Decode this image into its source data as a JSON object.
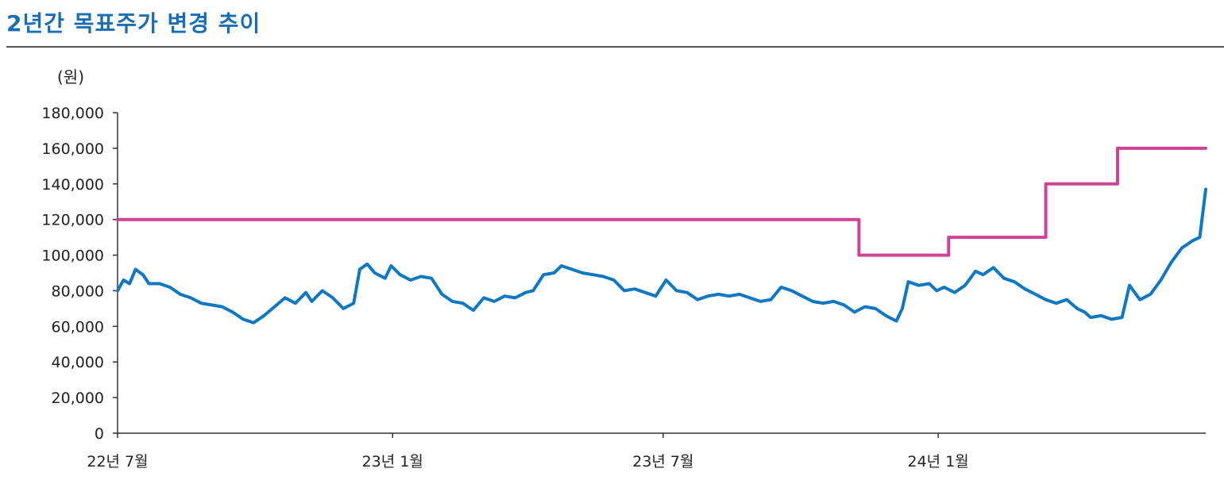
{
  "header": {
    "title": "2년간 목표주가 변경 추이"
  },
  "chart_data": {
    "type": "line",
    "title": "2년간 목표주가 변경 추이",
    "ylabel": "(원)",
    "xlabel": "",
    "ylim": [
      0,
      180000
    ],
    "xlim": [
      "2022-07-01",
      "2024-06-28"
    ],
    "y_ticks": [
      0,
      20000,
      40000,
      60000,
      80000,
      100000,
      120000,
      140000,
      160000,
      180000
    ],
    "y_tick_labels": [
      "0",
      "20,000",
      "40,000",
      "60,000",
      "80,000",
      "100,000",
      "120,000",
      "140,000",
      "160,000",
      "180,000"
    ],
    "x_ticks": [
      {
        "date": "2022-07-01",
        "label": "22년 7월"
      },
      {
        "date": "2023-01-01",
        "label": "23년 1월"
      },
      {
        "date": "2023-07-01",
        "label": "23년 7월"
      },
      {
        "date": "2024-01-01",
        "label": "24년 1월"
      }
    ],
    "grid": false,
    "legend": "none",
    "series": [
      {
        "color": "#0e78c2",
        "points": [
          [
            "2022-07-01",
            80000
          ],
          [
            "2022-07-05",
            86000
          ],
          [
            "2022-07-09",
            84000
          ],
          [
            "2022-07-13",
            92000
          ],
          [
            "2022-07-18",
            89000
          ],
          [
            "2022-07-22",
            84000
          ],
          [
            "2022-07-29",
            84000
          ],
          [
            "2022-08-05",
            82000
          ],
          [
            "2022-08-12",
            78000
          ],
          [
            "2022-08-19",
            76000
          ],
          [
            "2022-08-26",
            73000
          ],
          [
            "2022-09-02",
            72000
          ],
          [
            "2022-09-09",
            71000
          ],
          [
            "2022-09-16",
            68000
          ],
          [
            "2022-09-23",
            64000
          ],
          [
            "2022-09-30",
            62000
          ],
          [
            "2022-10-07",
            66000
          ],
          [
            "2022-10-14",
            71000
          ],
          [
            "2022-10-21",
            76000
          ],
          [
            "2022-10-28",
            73000
          ],
          [
            "2022-11-04",
            79000
          ],
          [
            "2022-11-08",
            74000
          ],
          [
            "2022-11-15",
            80000
          ],
          [
            "2022-11-22",
            76000
          ],
          [
            "2022-11-29",
            70000
          ],
          [
            "2022-12-06",
            73000
          ],
          [
            "2022-12-10",
            92000
          ],
          [
            "2022-12-15",
            95000
          ],
          [
            "2022-12-20",
            90000
          ],
          [
            "2022-12-27",
            87000
          ],
          [
            "2022-12-31",
            94000
          ],
          [
            "2023-01-06",
            89000
          ],
          [
            "2023-01-13",
            86000
          ],
          [
            "2023-01-20",
            88000
          ],
          [
            "2023-01-27",
            87000
          ],
          [
            "2023-02-03",
            78000
          ],
          [
            "2023-02-10",
            74000
          ],
          [
            "2023-02-17",
            73000
          ],
          [
            "2023-02-24",
            69000
          ],
          [
            "2023-03-03",
            76000
          ],
          [
            "2023-03-10",
            74000
          ],
          [
            "2023-03-17",
            77000
          ],
          [
            "2023-03-24",
            76000
          ],
          [
            "2023-03-31",
            79000
          ],
          [
            "2023-04-05",
            80000
          ],
          [
            "2023-04-12",
            89000
          ],
          [
            "2023-04-19",
            90000
          ],
          [
            "2023-04-24",
            94000
          ],
          [
            "2023-05-01",
            92000
          ],
          [
            "2023-05-08",
            90000
          ],
          [
            "2023-05-15",
            89000
          ],
          [
            "2023-05-22",
            88000
          ],
          [
            "2023-05-29",
            86000
          ],
          [
            "2023-06-05",
            80000
          ],
          [
            "2023-06-12",
            81000
          ],
          [
            "2023-06-19",
            79000
          ],
          [
            "2023-06-26",
            77000
          ],
          [
            "2023-07-03",
            86000
          ],
          [
            "2023-07-10",
            80000
          ],
          [
            "2023-07-17",
            79000
          ],
          [
            "2023-07-24",
            75000
          ],
          [
            "2023-07-31",
            77000
          ],
          [
            "2023-08-07",
            78000
          ],
          [
            "2023-08-14",
            77000
          ],
          [
            "2023-08-21",
            78000
          ],
          [
            "2023-08-28",
            76000
          ],
          [
            "2023-09-04",
            74000
          ],
          [
            "2023-09-11",
            75000
          ],
          [
            "2023-09-18",
            82000
          ],
          [
            "2023-09-25",
            80000
          ],
          [
            "2023-10-02",
            77000
          ],
          [
            "2023-10-09",
            74000
          ],
          [
            "2023-10-16",
            73000
          ],
          [
            "2023-10-23",
            74000
          ],
          [
            "2023-10-30",
            72000
          ],
          [
            "2023-11-06",
            68000
          ],
          [
            "2023-11-13",
            71000
          ],
          [
            "2023-11-20",
            70000
          ],
          [
            "2023-11-27",
            66000
          ],
          [
            "2023-12-04",
            63000
          ],
          [
            "2023-12-08",
            70000
          ],
          [
            "2023-12-12",
            85000
          ],
          [
            "2023-12-19",
            83000
          ],
          [
            "2023-12-26",
            84000
          ],
          [
            "2023-12-31",
            80000
          ],
          [
            "2024-01-05",
            82000
          ],
          [
            "2024-01-12",
            79000
          ],
          [
            "2024-01-19",
            83000
          ],
          [
            "2024-01-26",
            91000
          ],
          [
            "2024-01-31",
            89000
          ],
          [
            "2024-02-07",
            93000
          ],
          [
            "2024-02-14",
            87000
          ],
          [
            "2024-02-21",
            85000
          ],
          [
            "2024-02-28",
            81000
          ],
          [
            "2024-03-06",
            78000
          ],
          [
            "2024-03-13",
            75000
          ],
          [
            "2024-03-20",
            73000
          ],
          [
            "2024-03-27",
            75000
          ],
          [
            "2024-04-03",
            70000
          ],
          [
            "2024-04-08",
            68000
          ],
          [
            "2024-04-12",
            65000
          ],
          [
            "2024-04-19",
            66000
          ],
          [
            "2024-04-26",
            64000
          ],
          [
            "2024-05-03",
            65000
          ],
          [
            "2024-05-08",
            83000
          ],
          [
            "2024-05-15",
            75000
          ],
          [
            "2024-05-22",
            78000
          ],
          [
            "2024-05-29",
            86000
          ],
          [
            "2024-06-05",
            96000
          ],
          [
            "2024-06-12",
            104000
          ],
          [
            "2024-06-19",
            108000
          ],
          [
            "2024-06-24",
            110000
          ],
          [
            "2024-06-28",
            137000
          ]
        ]
      },
      {
        "color": "#cf4393",
        "points": [
          [
            "2022-07-01",
            120000
          ],
          [
            "2023-11-09",
            120000
          ],
          [
            "2023-11-09",
            100000
          ],
          [
            "2024-01-08",
            100000
          ],
          [
            "2024-01-08",
            110000
          ],
          [
            "2024-03-13",
            110000
          ],
          [
            "2024-03-13",
            140000
          ],
          [
            "2024-04-30",
            140000
          ],
          [
            "2024-04-30",
            160000
          ],
          [
            "2024-06-28",
            160000
          ]
        ]
      }
    ]
  }
}
